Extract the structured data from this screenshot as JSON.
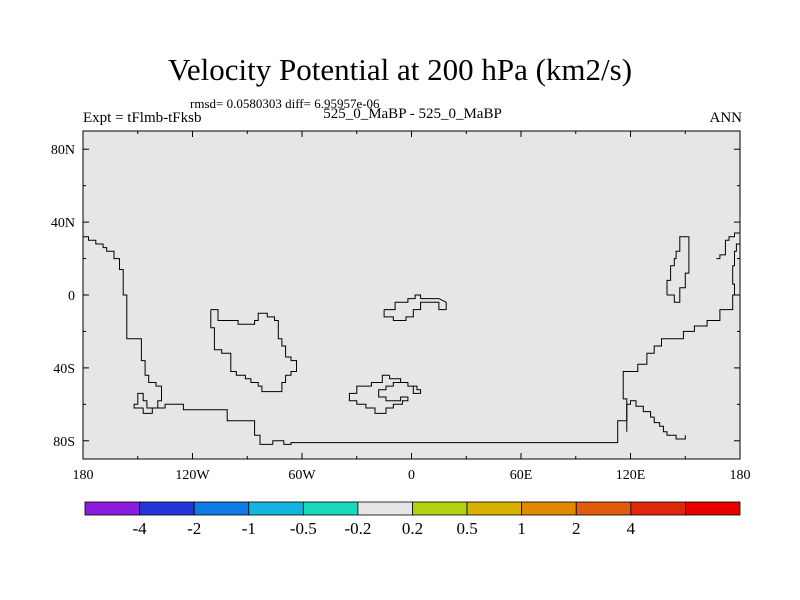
{
  "header": {
    "title": "Velocity Potential at 200 hPa (km2/s)",
    "stats": "rmsd= 0.0580303 diff= 6.95957e-06",
    "left_string": "Expt = tFlmb-tFksb",
    "center_string": "525_0_MaBP - 525_0_MaBP",
    "right_string": "ANN"
  },
  "chart_data": {
    "type": "heatmap",
    "title": "Velocity Potential at 200 hPa (km2/s)",
    "xlabel": "",
    "ylabel": "",
    "xlim": [
      -180,
      180
    ],
    "ylim": [
      -90,
      90
    ],
    "x_ticks": [
      {
        "value": -180,
        "label": "180"
      },
      {
        "value": -120,
        "label": "120W"
      },
      {
        "value": -60,
        "label": "60W"
      },
      {
        "value": 0,
        "label": "0"
      },
      {
        "value": 60,
        "label": "60E"
      },
      {
        "value": 120,
        "label": "120E"
      },
      {
        "value": 180,
        "label": "180"
      }
    ],
    "y_ticks": [
      {
        "value": 80,
        "label": "80N"
      },
      {
        "value": 40,
        "label": "40N"
      },
      {
        "value": 0,
        "label": "0"
      },
      {
        "value": -40,
        "label": "40S"
      },
      {
        "value": -80,
        "label": "80S"
      }
    ],
    "field_fill": "#e6e6e6",
    "coastlines": [
      [
        [
          -180,
          32
        ],
        [
          -177,
          32
        ],
        [
          -177,
          30
        ],
        [
          -173,
          30
        ],
        [
          -173,
          28
        ],
        [
          -169,
          28
        ],
        [
          -169,
          26
        ],
        [
          -167,
          26
        ],
        [
          -167,
          24
        ],
        [
          -163,
          24
        ],
        [
          -163,
          20
        ],
        [
          -160,
          20
        ],
        [
          -160,
          14
        ],
        [
          -158,
          14
        ],
        [
          -158,
          0
        ],
        [
          -156,
          0
        ],
        [
          -156,
          -24
        ],
        [
          -148,
          -24
        ],
        [
          -148,
          -36
        ],
        [
          -146,
          -36
        ],
        [
          -146,
          -44
        ],
        [
          -144,
          -44
        ],
        [
          -144,
          -48
        ],
        [
          -140,
          -48
        ],
        [
          -140,
          -50
        ],
        [
          -137,
          -50
        ],
        [
          -137,
          -58
        ],
        [
          -139,
          -58
        ],
        [
          -139,
          -62
        ],
        [
          -145,
          -62
        ],
        [
          -145,
          -58
        ],
        [
          -147,
          -58
        ],
        [
          -147,
          -54
        ],
        [
          -150,
          -54
        ],
        [
          -150,
          -60
        ],
        [
          -152,
          -60
        ],
        [
          -152,
          -62
        ],
        [
          -147,
          -62
        ],
        [
          -147,
          -65
        ],
        [
          -142,
          -65
        ],
        [
          -142,
          -62
        ],
        [
          -135,
          -62
        ],
        [
          -135,
          -60
        ],
        [
          -125,
          -60
        ],
        [
          -125,
          -63
        ],
        [
          -101,
          -63
        ],
        [
          -101,
          -69
        ],
        [
          -86,
          -69
        ],
        [
          -86,
          -77
        ],
        [
          -83,
          -77
        ],
        [
          -83,
          -82
        ],
        [
          -76,
          -82
        ],
        [
          -76,
          -80
        ],
        [
          -70,
          -80
        ],
        [
          -70,
          -82
        ],
        [
          -66,
          -82
        ],
        [
          -66,
          -81
        ],
        [
          113,
          -81
        ],
        [
          113,
          -69
        ],
        [
          118,
          -69
        ],
        [
          118,
          -60
        ],
        [
          120,
          -60
        ],
        [
          120,
          -58
        ],
        [
          123,
          -58
        ],
        [
          123,
          -61
        ],
        [
          127,
          -61
        ],
        [
          127,
          -64
        ],
        [
          131,
          -64
        ],
        [
          131,
          -67
        ],
        [
          133,
          -67
        ],
        [
          133,
          -70
        ],
        [
          136,
          -70
        ],
        [
          136,
          -72
        ],
        [
          138,
          -72
        ],
        [
          138,
          -75
        ],
        [
          140,
          -75
        ],
        [
          140,
          -77
        ],
        [
          145,
          -77
        ],
        [
          145,
          -79
        ],
        [
          150,
          -79
        ],
        [
          150,
          -77
        ]
      ],
      [
        [
          118,
          -75
        ],
        [
          118,
          -57
        ],
        [
          116,
          -57
        ],
        [
          116,
          -42
        ],
        [
          124,
          -42
        ],
        [
          124,
          -38
        ],
        [
          129,
          -38
        ],
        [
          129,
          -32
        ],
        [
          133,
          -32
        ],
        [
          133,
          -28
        ],
        [
          137,
          -28
        ],
        [
          137,
          -24
        ],
        [
          149,
          -24
        ],
        [
          149,
          -20
        ],
        [
          155,
          -20
        ],
        [
          155,
          -17
        ],
        [
          162,
          -17
        ],
        [
          162,
          -14
        ],
        [
          169,
          -14
        ],
        [
          169,
          -8
        ],
        [
          176,
          -8
        ],
        [
          176,
          0
        ],
        [
          177,
          0
        ],
        [
          177,
          6
        ],
        [
          176,
          6
        ],
        [
          176,
          16
        ],
        [
          177,
          16
        ],
        [
          177,
          24
        ],
        [
          178,
          24
        ],
        [
          178,
          28
        ],
        [
          180,
          28
        ],
        [
          180,
          34
        ],
        [
          177,
          34
        ],
        [
          177,
          32
        ],
        [
          174,
          32
        ],
        [
          174,
          30
        ],
        [
          172,
          30
        ],
        [
          172,
          22
        ],
        [
          169,
          22
        ],
        [
          169,
          20
        ],
        [
          167,
          20
        ]
      ],
      [
        [
          140,
          0
        ],
        [
          140,
          8
        ],
        [
          142,
          8
        ],
        [
          142,
          16
        ],
        [
          144,
          16
        ],
        [
          144,
          20
        ],
        [
          145,
          20
        ],
        [
          145,
          24
        ],
        [
          147,
          24
        ],
        [
          147,
          32
        ],
        [
          152,
          32
        ],
        [
          152,
          12
        ],
        [
          150,
          12
        ],
        [
          150,
          4
        ],
        [
          147,
          4
        ],
        [
          147,
          -4
        ],
        [
          144,
          -4
        ],
        [
          144,
          0
        ],
        [
          140,
          0
        ]
      ],
      [
        [
          -110,
          -8
        ],
        [
          -110,
          -18
        ],
        [
          -108,
          -18
        ],
        [
          -108,
          -30
        ],
        [
          -104,
          -30
        ],
        [
          -104,
          -32
        ],
        [
          -99,
          -32
        ],
        [
          -99,
          -42
        ],
        [
          -96,
          -42
        ],
        [
          -96,
          -44
        ],
        [
          -91,
          -44
        ],
        [
          -91,
          -46
        ],
        [
          -88,
          -46
        ],
        [
          -88,
          -48
        ],
        [
          -84,
          -48
        ],
        [
          -84,
          -50
        ],
        [
          -82,
          -50
        ],
        [
          -82,
          -53
        ],
        [
          -71,
          -53
        ],
        [
          -71,
          -48
        ],
        [
          -69,
          -48
        ],
        [
          -69,
          -44
        ],
        [
          -66,
          -44
        ],
        [
          -66,
          -42
        ],
        [
          -63,
          -42
        ],
        [
          -63,
          -36
        ],
        [
          -66,
          -36
        ],
        [
          -66,
          -34
        ],
        [
          -69,
          -34
        ],
        [
          -69,
          -28
        ],
        [
          -71,
          -28
        ],
        [
          -71,
          -24
        ],
        [
          -73,
          -24
        ],
        [
          -73,
          -14
        ],
        [
          -75,
          -14
        ],
        [
          -75,
          -12
        ],
        [
          -79,
          -12
        ],
        [
          -79,
          -10
        ],
        [
          -84,
          -10
        ],
        [
          -84,
          -14
        ],
        [
          -86,
          -14
        ],
        [
          -86,
          -16
        ],
        [
          -95,
          -16
        ],
        [
          -95,
          -14
        ],
        [
          -106,
          -14
        ],
        [
          -106,
          -8
        ],
        [
          -110,
          -8
        ]
      ],
      [
        [
          -15,
          -8
        ],
        [
          -15,
          -12
        ],
        [
          -10,
          -12
        ],
        [
          -10,
          -14
        ],
        [
          -3,
          -14
        ],
        [
          -3,
          -12
        ],
        [
          1,
          -12
        ],
        [
          1,
          -8
        ],
        [
          5,
          -8
        ],
        [
          5,
          -4
        ],
        [
          15,
          -4
        ],
        [
          15,
          -8
        ],
        [
          19,
          -8
        ],
        [
          19,
          -4
        ],
        [
          15,
          -2
        ],
        [
          5,
          -2
        ],
        [
          5,
          0
        ],
        [
          2,
          0
        ],
        [
          2,
          -2
        ],
        [
          -2,
          -2
        ],
        [
          -2,
          -4
        ],
        [
          -9,
          -4
        ],
        [
          -9,
          -8
        ],
        [
          -15,
          -8
        ]
      ],
      [
        [
          -12,
          -44
        ],
        [
          -12,
          -46
        ],
        [
          -6,
          -46
        ],
        [
          -6,
          -48
        ],
        [
          -2,
          -48
        ],
        [
          -2,
          -50
        ],
        [
          1,
          -50
        ],
        [
          1,
          -54
        ],
        [
          5,
          -54
        ],
        [
          5,
          -52
        ],
        [
          3,
          -52
        ],
        [
          3,
          -50
        ],
        [
          -2,
          -50
        ],
        [
          -2,
          -48
        ],
        [
          -10,
          -48
        ],
        [
          -10,
          -50
        ],
        [
          -14,
          -50
        ],
        [
          -14,
          -52
        ],
        [
          -18,
          -52
        ],
        [
          -18,
          -56
        ],
        [
          -14,
          -56
        ],
        [
          -14,
          -58
        ],
        [
          -6,
          -58
        ],
        [
          -6,
          -56
        ],
        [
          -2,
          -56
        ],
        [
          -2,
          -58
        ],
        [
          -5,
          -58
        ],
        [
          -5,
          -60
        ],
        [
          -10,
          -60
        ],
        [
          -10,
          -62
        ],
        [
          -14,
          -62
        ],
        [
          -14,
          -65
        ],
        [
          -20,
          -65
        ],
        [
          -20,
          -62
        ],
        [
          -25,
          -62
        ],
        [
          -25,
          -60
        ],
        [
          -30,
          -60
        ],
        [
          -30,
          -58
        ],
        [
          -34,
          -58
        ],
        [
          -34,
          -54
        ],
        [
          -30,
          -54
        ],
        [
          -30,
          -50
        ],
        [
          -22,
          -50
        ],
        [
          -22,
          -48
        ],
        [
          -16,
          -48
        ],
        [
          -16,
          -44
        ],
        [
          -12,
          -44
        ]
      ]
    ],
    "colorbar": {
      "colors": [
        "#8b1ce0",
        "#2534d8",
        "#0e7ce6",
        "#13b4e0",
        "#18d7bd",
        "#e5e5e5",
        "#b2d10e",
        "#d9b100",
        "#e18900",
        "#e25a0b",
        "#df280b",
        "#e60000"
      ],
      "labels": [
        "-4",
        "-2",
        "-1",
        "-0.5",
        "-0.2",
        "0.2",
        "0.5",
        "1",
        "2",
        "4"
      ]
    }
  }
}
